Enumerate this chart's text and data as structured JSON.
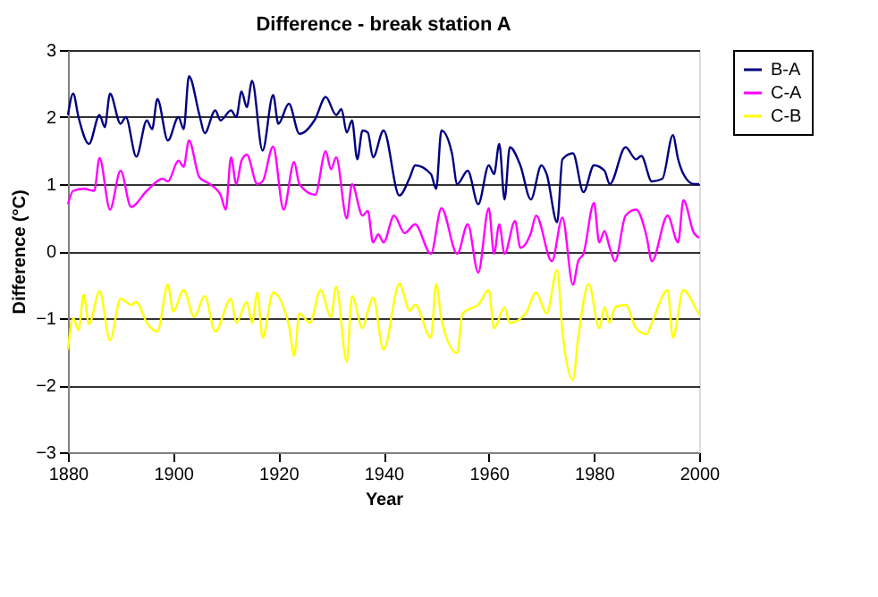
{
  "chart_data": {
    "type": "line",
    "title": "Difference - break station A",
    "xlabel": "Year",
    "ylabel": "Difference (°C)",
    "xlim": [
      1880,
      2000
    ],
    "xticks": [
      1880,
      1900,
      1920,
      1940,
      1960,
      1980,
      2000
    ],
    "ylim": [
      -3,
      3
    ],
    "yticks": [
      -3,
      -2,
      -1,
      0,
      1,
      2,
      3
    ],
    "grid": "y",
    "legend": "right",
    "series": [
      {
        "name": "B-A",
        "color": "#000080",
        "x": [
          1880,
          1881,
          1882,
          1884,
          1886,
          1887,
          1888,
          1890,
          1891,
          1893,
          1895,
          1896,
          1897,
          1899,
          1901,
          1902,
          1903,
          1905,
          1906,
          1908,
          1909,
          1911,
          1912,
          1913,
          1914,
          1915,
          1917,
          1919,
          1920,
          1922,
          1924,
          1927,
          1929,
          1931,
          1932,
          1933,
          1934,
          1935,
          1936,
          1937,
          1938,
          1940,
          1943,
          1945,
          1946,
          1949,
          1950,
          1951,
          1953,
          1954,
          1956,
          1958,
          1960,
          1961,
          1962,
          1963,
          1964,
          1966,
          1968,
          1970,
          1971,
          1973,
          1974,
          1976,
          1978,
          1980,
          1982,
          1983,
          1986,
          1988,
          1989,
          1991,
          1993,
          1995,
          1996,
          1997,
          1999,
          2000
        ],
        "values": [
          2.03,
          2.35,
          2.0,
          1.6,
          2.03,
          1.85,
          2.35,
          1.9,
          2.0,
          1.41,
          1.95,
          1.82,
          2.27,
          1.65,
          2.0,
          1.82,
          2.61,
          2.03,
          1.76,
          2.1,
          1.95,
          2.1,
          2.0,
          2.38,
          2.15,
          2.54,
          1.5,
          2.33,
          1.9,
          2.2,
          1.75,
          1.97,
          2.3,
          2.03,
          2.12,
          1.77,
          1.95,
          1.37,
          1.8,
          1.77,
          1.4,
          1.8,
          0.83,
          1.1,
          1.28,
          1.15,
          0.93,
          1.8,
          1.46,
          1.0,
          1.2,
          0.7,
          1.28,
          1.15,
          1.6,
          0.77,
          1.55,
          1.28,
          0.77,
          1.28,
          1.15,
          0.43,
          1.37,
          1.46,
          0.88,
          1.28,
          1.2,
          1.0,
          1.55,
          1.37,
          1.42,
          1.04,
          1.08,
          1.73,
          1.37,
          1.15,
          1.0,
          1.0
        ]
      },
      {
        "name": "C-A",
        "color": "#ff00ff",
        "x": [
          1880,
          1881,
          1883,
          1885,
          1886,
          1888,
          1890,
          1892,
          1895,
          1898,
          1899,
          1901,
          1902,
          1903,
          1905,
          1907,
          1909,
          1910,
          1911,
          1912,
          1913,
          1914,
          1916,
          1917,
          1919,
          1921,
          1923,
          1924,
          1927,
          1929,
          1930,
          1931,
          1933,
          1934,
          1936,
          1937,
          1938,
          1939,
          1940,
          1942,
          1944,
          1946,
          1949,
          1951,
          1954,
          1956,
          1958,
          1960,
          1961,
          1962,
          1963,
          1965,
          1966,
          1968,
          1969,
          1972,
          1974,
          1976,
          1977,
          1978,
          1980,
          1981,
          1982,
          1983,
          1984,
          1986,
          1988,
          1990,
          1991,
          1994,
          1996,
          1997,
          1999,
          2000
        ],
        "values": [
          0.7,
          0.9,
          0.93,
          0.9,
          1.39,
          0.62,
          1.2,
          0.66,
          0.9,
          1.08,
          1.04,
          1.35,
          1.26,
          1.65,
          1.1,
          1.0,
          0.84,
          0.62,
          1.4,
          1.0,
          1.35,
          1.44,
          1.0,
          1.04,
          1.56,
          0.62,
          1.33,
          1.0,
          0.84,
          1.49,
          1.22,
          1.4,
          0.49,
          1.0,
          0.53,
          0.6,
          0.13,
          0.25,
          0.13,
          0.53,
          0.27,
          0.4,
          -0.04,
          0.64,
          -0.04,
          0.4,
          -0.32,
          0.64,
          -0.04,
          0.4,
          -0.04,
          0.45,
          0.05,
          0.27,
          0.53,
          -0.15,
          0.5,
          -0.5,
          -0.15,
          -0.04,
          0.72,
          0.13,
          0.3,
          0.05,
          -0.15,
          0.53,
          0.62,
          0.22,
          -0.15,
          0.53,
          0.13,
          0.76,
          0.27,
          0.2
        ]
      },
      {
        "name": "C-B",
        "color": "#ffff00",
        "x": [
          1880,
          1881,
          1882,
          1883,
          1884,
          1886,
          1888,
          1890,
          1892,
          1893,
          1895,
          1897,
          1899,
          1900,
          1902,
          1904,
          1906,
          1908,
          1911,
          1912,
          1914,
          1915,
          1916,
          1917,
          1919,
          1922,
          1923,
          1924,
          1926,
          1928,
          1930,
          1931,
          1933,
          1934,
          1936,
          1937,
          1938,
          1940,
          1943,
          1945,
          1946,
          1949,
          1950,
          1951,
          1954,
          1955,
          1957,
          1958,
          1960,
          1961,
          1963,
          1964,
          1967,
          1969,
          1971,
          1973,
          1974,
          1976,
          1977,
          1979,
          1981,
          1982,
          1983,
          1984,
          1986,
          1988,
          1990,
          1991,
          1994,
          1995,
          1997,
          1999,
          2000
        ],
        "values": [
          -1.47,
          -1.0,
          -1.18,
          -0.65,
          -1.09,
          -0.6,
          -1.33,
          -0.71,
          -0.8,
          -0.76,
          -1.07,
          -1.2,
          -0.5,
          -0.9,
          -0.58,
          -0.98,
          -0.67,
          -1.2,
          -0.71,
          -1.07,
          -0.76,
          -1.07,
          -0.62,
          -1.29,
          -0.62,
          -1.11,
          -1.56,
          -0.93,
          -1.07,
          -0.58,
          -0.98,
          -0.53,
          -1.65,
          -0.67,
          -1.15,
          -0.9,
          -0.69,
          -1.47,
          -0.49,
          -0.89,
          -0.8,
          -1.29,
          -0.49,
          -1.02,
          -1.52,
          -0.93,
          -0.84,
          -0.8,
          -0.58,
          -1.15,
          -0.84,
          -1.07,
          -0.93,
          -0.62,
          -0.93,
          -0.28,
          -1.2,
          -1.92,
          -1.29,
          -0.49,
          -1.15,
          -0.84,
          -1.07,
          -0.84,
          -0.8,
          -1.15,
          -1.24,
          -1.07,
          -0.58,
          -1.29,
          -0.58,
          -0.8,
          -0.95
        ]
      }
    ]
  }
}
